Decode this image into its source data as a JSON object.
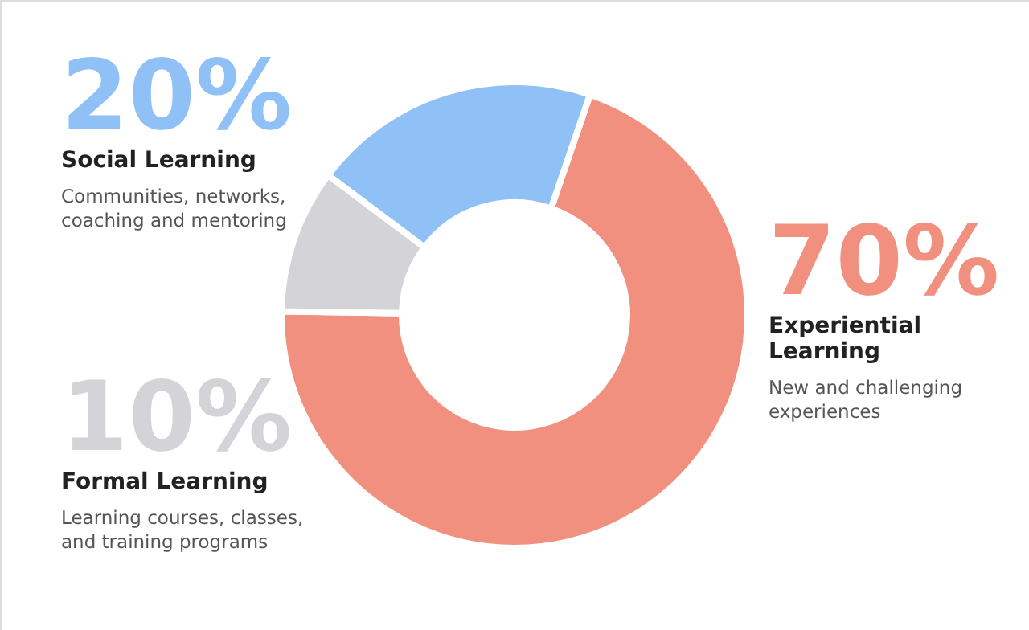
{
  "chart_data": {
    "type": "donut",
    "categories": [
      "Experiential Learning",
      "Formal Learning",
      "Social Learning"
    ],
    "values": [
      70,
      10,
      20
    ],
    "colors": [
      "#f29080",
      "#d3d3d8",
      "#8fc1f7"
    ],
    "value_labels": [
      "70%",
      "10%",
      "20%"
    ],
    "annotations": [
      "New and challenging experiences",
      "Learning courses, classes, and training programs",
      "Communities, networks, coaching and mentoring"
    ]
  }
}
